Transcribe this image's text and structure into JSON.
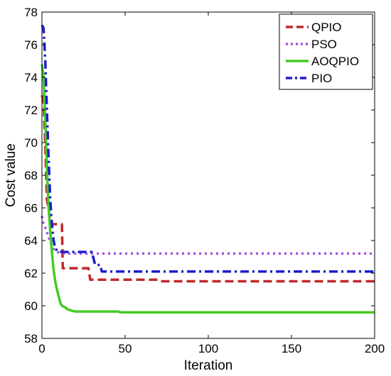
{
  "chart_data": {
    "type": "line",
    "xlabel": "Iteration",
    "ylabel": "Cost value",
    "xlim": [
      0,
      200
    ],
    "ylim": [
      58,
      78
    ],
    "x_ticks": [
      0,
      50,
      100,
      150,
      200
    ],
    "y_ticks": [
      58,
      60,
      62,
      64,
      66,
      68,
      70,
      72,
      74,
      76,
      78
    ],
    "grid": false,
    "legend_position": "top-right",
    "series": [
      {
        "name": "QPIO",
        "color": "#c0282a",
        "dash": "dashed",
        "points": [
          [
            0,
            72.9
          ],
          [
            1,
            72.5
          ],
          [
            2,
            69.8
          ],
          [
            3,
            66.5
          ],
          [
            4,
            66.0
          ],
          [
            5,
            65.0
          ],
          [
            12,
            65.0
          ],
          [
            12.5,
            62.3
          ],
          [
            28,
            62.3
          ],
          [
            29,
            61.6
          ],
          [
            70,
            61.6
          ],
          [
            71,
            61.5
          ],
          [
            200,
            61.5
          ]
        ]
      },
      {
        "name": "PSO",
        "color": "#a050e0",
        "dash": "dotted",
        "points": [
          [
            0,
            65.5
          ],
          [
            1,
            65.0
          ],
          [
            2,
            64.8
          ],
          [
            3,
            64.5
          ],
          [
            4,
            64.2
          ],
          [
            5,
            63.9
          ],
          [
            7,
            63.5
          ],
          [
            9,
            63.3
          ],
          [
            12,
            63.2
          ],
          [
            200,
            63.2
          ]
        ]
      },
      {
        "name": "AOQPIO",
        "color": "#44cc22",
        "dash": "solid",
        "points": [
          [
            0,
            74.8
          ],
          [
            1,
            74.0
          ],
          [
            2,
            71.5
          ],
          [
            3,
            68.5
          ],
          [
            4,
            66.0
          ],
          [
            5,
            64.5
          ],
          [
            6,
            63.3
          ],
          [
            7,
            62.2
          ],
          [
            8,
            61.5
          ],
          [
            9,
            61.0
          ],
          [
            10,
            60.6
          ],
          [
            11,
            60.2
          ],
          [
            12,
            60.0
          ],
          [
            14,
            59.9
          ],
          [
            15,
            59.8
          ],
          [
            18,
            59.7
          ],
          [
            20,
            59.65
          ],
          [
            46,
            59.65
          ],
          [
            47,
            59.6
          ],
          [
            200,
            59.6
          ]
        ]
      },
      {
        "name": "PIO",
        "color": "#1c1cd0",
        "dash": "dashdot",
        "points": [
          [
            0,
            77.2
          ],
          [
            1,
            77.0
          ],
          [
            2,
            75.0
          ],
          [
            3,
            72.0
          ],
          [
            4,
            69.0
          ],
          [
            5,
            66.5
          ],
          [
            6,
            65.0
          ],
          [
            7,
            64.0
          ],
          [
            8,
            63.5
          ],
          [
            10,
            63.3
          ],
          [
            30,
            63.3
          ],
          [
            32,
            62.5
          ],
          [
            35,
            62.5
          ],
          [
            36,
            62.1
          ],
          [
            200,
            62.1
          ]
        ]
      }
    ]
  }
}
